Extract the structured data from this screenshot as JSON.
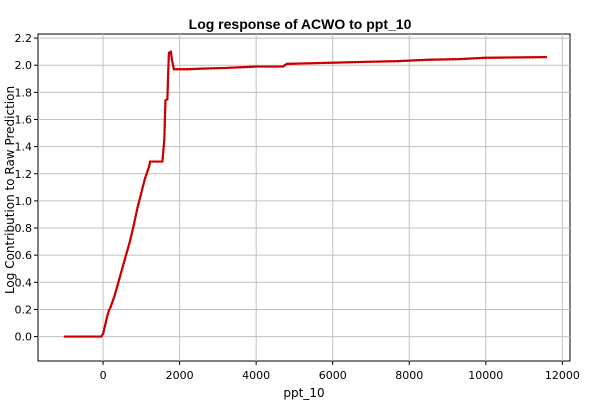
{
  "chart_data": {
    "type": "line",
    "title": "Log response of ACWO to ppt_10",
    "xlabel": "ppt_10",
    "ylabel": "Log Contribution to Raw Prediction",
    "xlim": [
      -1700,
      12200
    ],
    "ylim": [
      -0.18,
      2.23
    ],
    "x_ticks": [
      0,
      2000,
      4000,
      6000,
      8000,
      10000,
      12000
    ],
    "y_ticks": [
      0.0,
      0.2,
      0.4,
      0.6,
      0.8,
      1.0,
      1.2,
      1.4,
      1.6,
      1.8,
      2.0,
      2.2
    ],
    "grid": true,
    "series": [
      {
        "color": "#ee0000",
        "points": [
          [
            -1000,
            0.0
          ],
          [
            -50,
            0.0
          ],
          [
            0,
            0.02
          ],
          [
            50,
            0.08
          ],
          [
            100,
            0.14
          ],
          [
            150,
            0.19
          ],
          [
            200,
            0.22
          ],
          [
            300,
            0.3
          ],
          [
            400,
            0.4
          ],
          [
            500,
            0.5
          ],
          [
            600,
            0.6
          ],
          [
            700,
            0.7
          ],
          [
            800,
            0.82
          ],
          [
            900,
            0.95
          ],
          [
            1000,
            1.06
          ],
          [
            1100,
            1.17
          ],
          [
            1200,
            1.25
          ],
          [
            1230,
            1.29
          ],
          [
            1550,
            1.29
          ],
          [
            1600,
            1.45
          ],
          [
            1630,
            1.74
          ],
          [
            1680,
            1.75
          ],
          [
            1720,
            2.09
          ],
          [
            1770,
            2.1
          ],
          [
            1800,
            2.04
          ],
          [
            1850,
            1.97
          ],
          [
            2200,
            1.97
          ],
          [
            2600,
            1.975
          ],
          [
            3200,
            1.98
          ],
          [
            4000,
            1.99
          ],
          [
            4700,
            1.99
          ],
          [
            4800,
            2.01
          ],
          [
            5500,
            2.015
          ],
          [
            6200,
            2.02
          ],
          [
            6900,
            2.025
          ],
          [
            7700,
            2.03
          ],
          [
            8500,
            2.04
          ],
          [
            9300,
            2.045
          ],
          [
            10000,
            2.055
          ],
          [
            11000,
            2.058
          ],
          [
            11600,
            2.06
          ]
        ]
      }
    ]
  }
}
